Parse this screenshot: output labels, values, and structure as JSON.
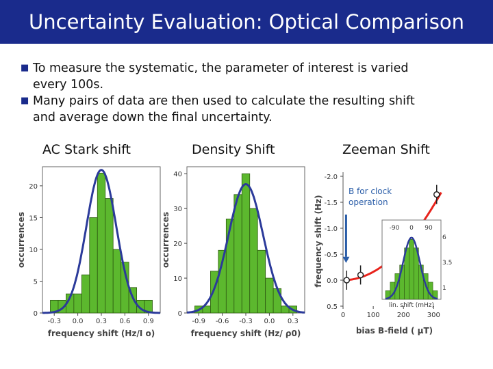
{
  "title": "Uncertainty Evaluation: Optical Comparison",
  "bullets": [
    {
      "line1": "To measure the systematic, the parameter of interest is varied",
      "line2": "every  100s."
    },
    {
      "line1": "Many pairs of data are then used to calculate the resulting shift",
      "line2": "and average down the final uncertainty."
    }
  ],
  "colors": {
    "title_bar": "#1a2b8c",
    "bar_fill": "#5cb82e",
    "gaussian": "#2b3a9a",
    "curve_red": "#e8221b"
  },
  "chart_data": [
    {
      "type": "bar",
      "subtitle": "AC Stark shift",
      "xlabel": "frequency shift (Hz/I  o)",
      "ylabel": "occurrences",
      "xticks": [
        "-0.3",
        "0.0",
        "0.3",
        "0.6",
        "0.9"
      ],
      "yticks": [
        "0",
        "5",
        "10",
        "15",
        "20"
      ],
      "xlim": [
        -0.45,
        1.05
      ],
      "ylim": [
        0,
        23
      ],
      "bin_width": 0.1,
      "bins": [
        -0.3,
        -0.2,
        -0.1,
        0.0,
        0.1,
        0.2,
        0.3,
        0.4,
        0.5,
        0.6,
        0.7,
        0.8,
        0.9
      ],
      "values": [
        2,
        2,
        3,
        3,
        6,
        15,
        22,
        18,
        10,
        8,
        4,
        2,
        2
      ],
      "fit": {
        "center": 0.3,
        "sigma": 0.19,
        "peak": 22.5
      }
    },
    {
      "type": "bar",
      "subtitle": "Density Shift",
      "xlabel": "frequency shift (Hz/  ρ0)",
      "ylabel": "occurrences",
      "xticks": [
        "-0.9",
        "-0.6",
        "-0.3",
        "0.0",
        "0.3"
      ],
      "yticks": [
        "0",
        "10",
        "20",
        "30",
        "40"
      ],
      "xlim": [
        -1.05,
        0.45
      ],
      "ylim": [
        0,
        42
      ],
      "bin_width": 0.1,
      "bins": [
        -0.9,
        -0.8,
        -0.7,
        -0.6,
        -0.5,
        -0.4,
        -0.3,
        -0.2,
        -0.1,
        0.0,
        0.1,
        0.2,
        0.3
      ],
      "values": [
        2,
        2,
        12,
        18,
        27,
        34,
        40,
        30,
        18,
        10,
        7,
        2,
        2
      ],
      "fit": {
        "center": -0.3,
        "sigma": 0.22,
        "peak": 37
      }
    },
    {
      "type": "scatter",
      "subtitle": "Zeeman Shift",
      "xlabel": "bias B-field (  µT)",
      "ylabel": "frequency shift (Hz)",
      "xticks": [
        "0",
        "100",
        "200",
        "300"
      ],
      "yticks": [
        "-2.0",
        "-1.5",
        "-1.0",
        "-0.5",
        "0.0",
        "0.5"
      ],
      "xlim": [
        0,
        340
      ],
      "ylim": [
        -2.0,
        0.5
      ],
      "points": [
        {
          "x": 12,
          "y": 0.0
        },
        {
          "x": 58,
          "y": -0.1
        },
        {
          "x": 310,
          "y": -1.65
        }
      ],
      "annotation": [
        "B for clock",
        "operation"
      ],
      "inset": {
        "type": "bar",
        "xticks": [
          "-90",
          "0",
          "90"
        ],
        "yticks": [
          "6",
          "3.5",
          "1"
        ],
        "xlabel": "lin. shift (mHz)",
        "values": [
          1,
          2,
          3,
          4,
          6,
          7,
          6,
          4,
          3,
          2,
          1
        ]
      }
    }
  ]
}
